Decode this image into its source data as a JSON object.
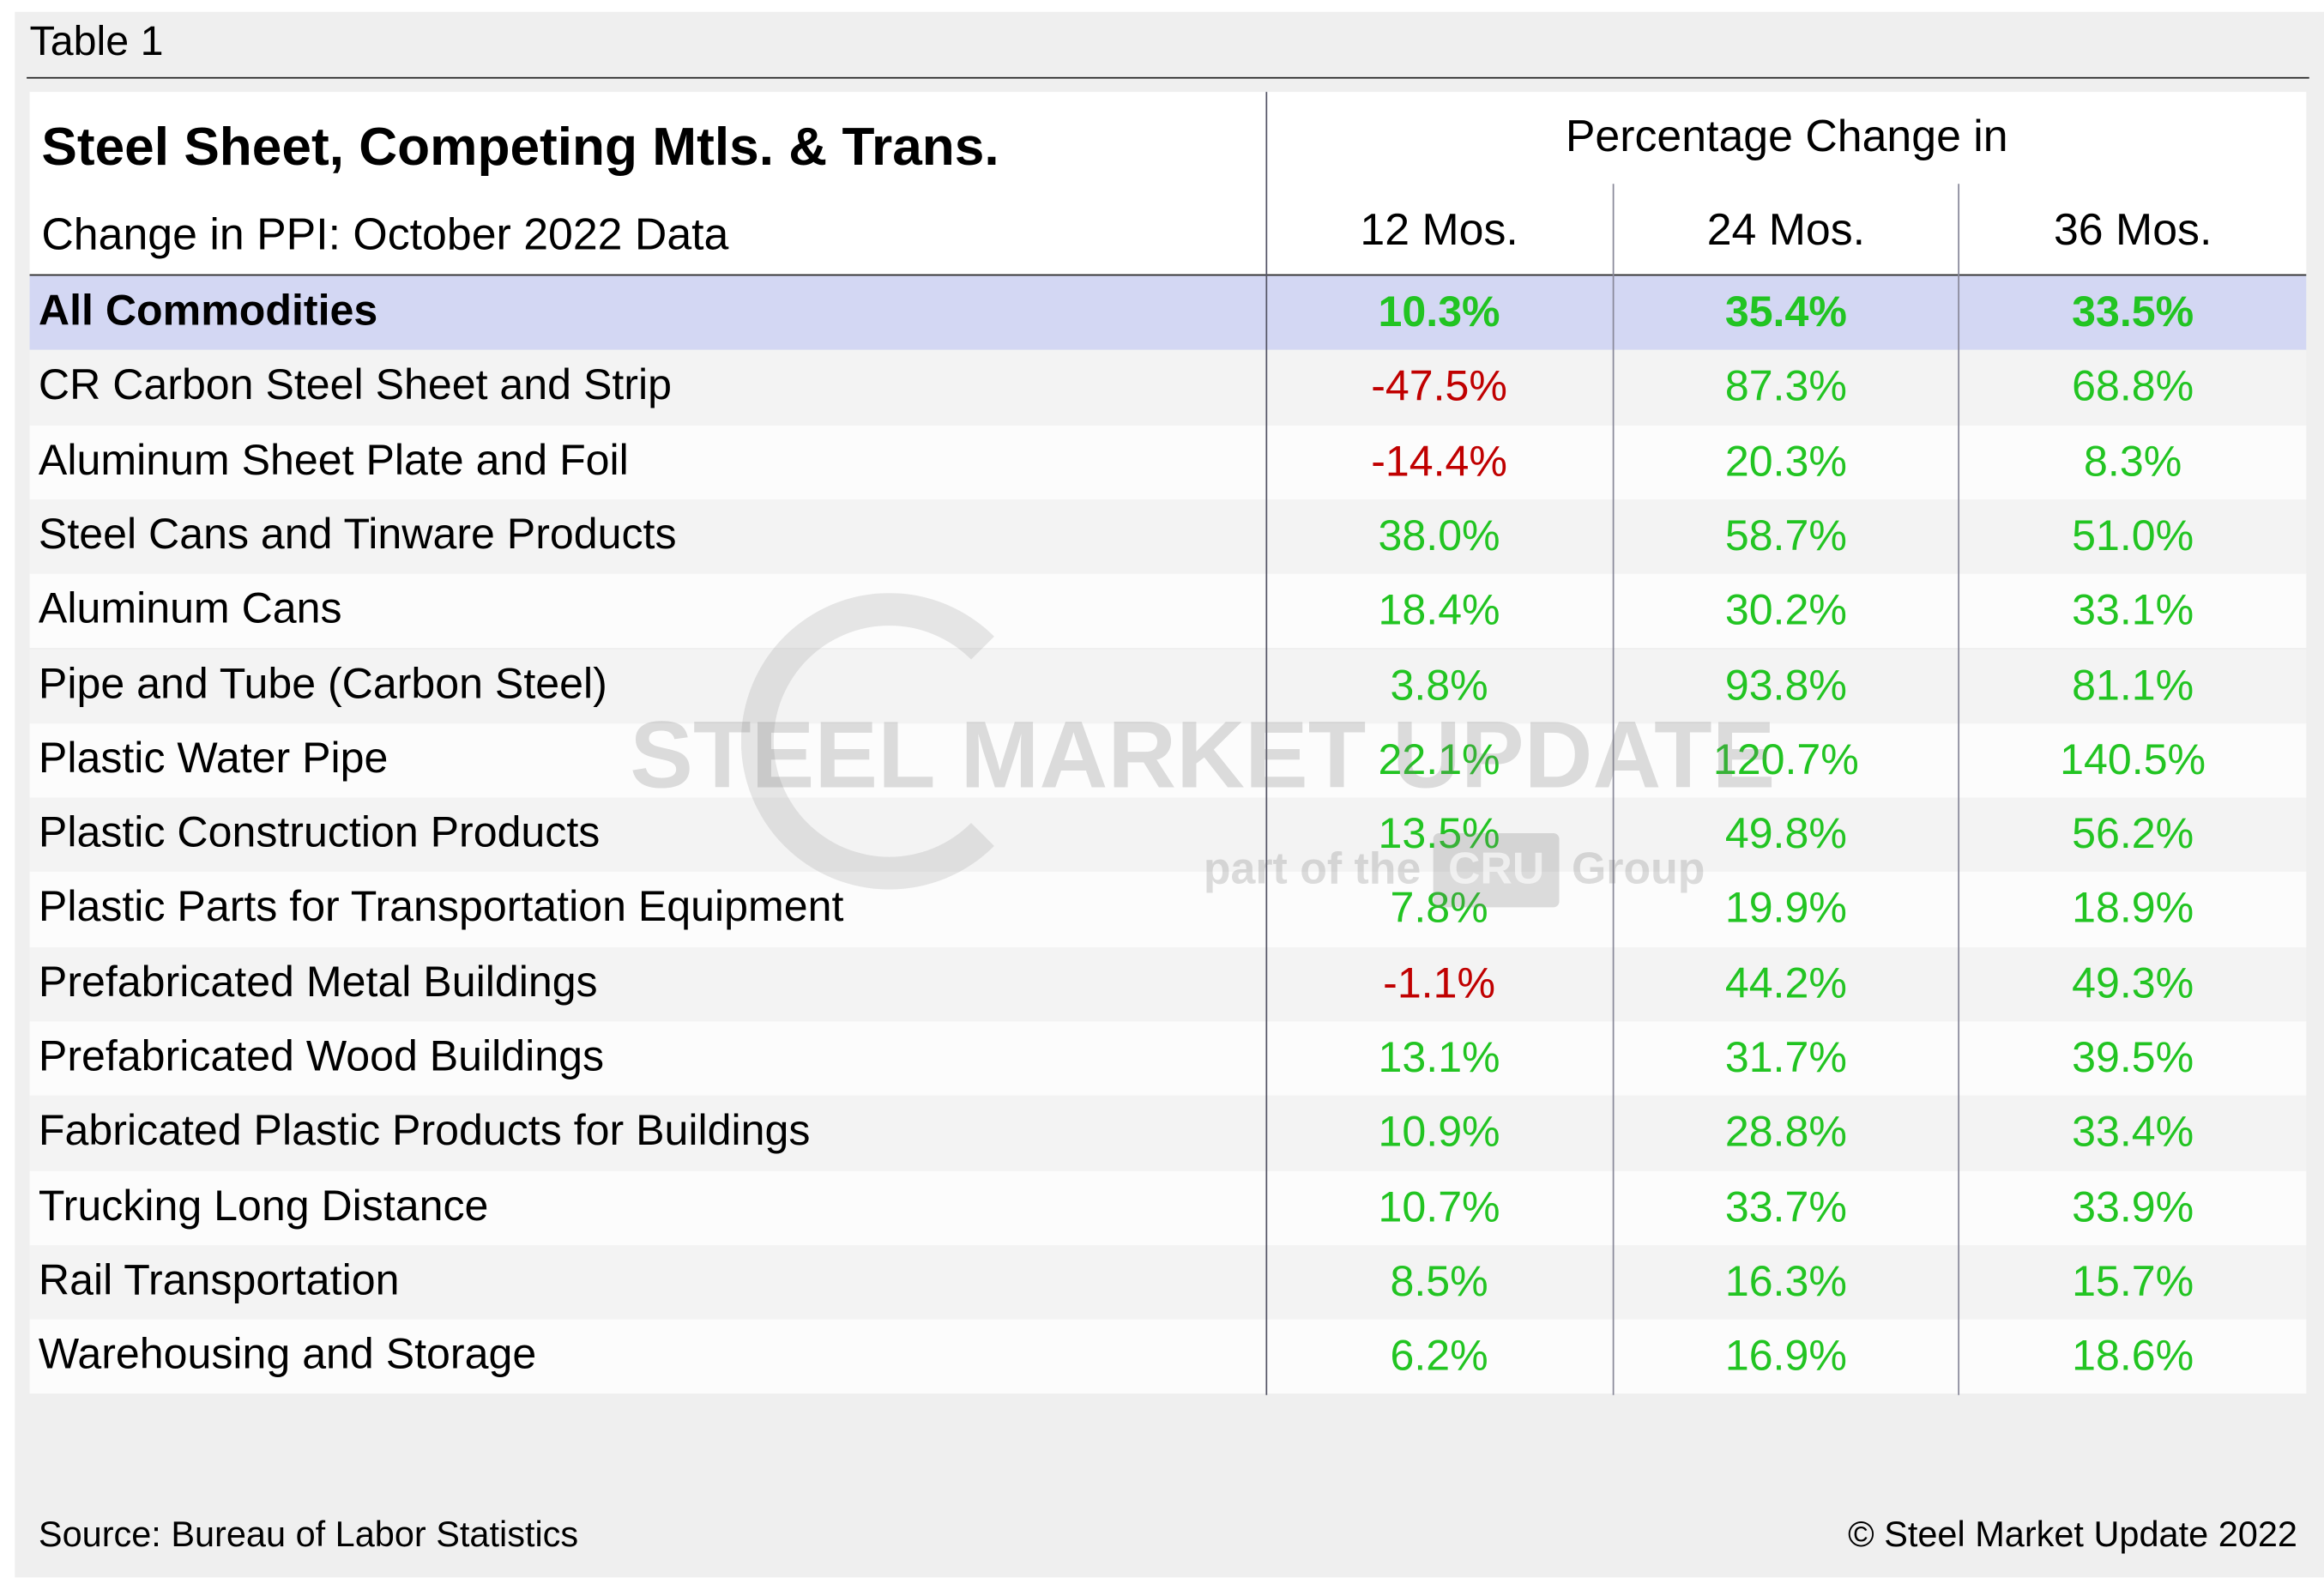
{
  "label": "Table 1",
  "header": {
    "title": "Steel Sheet, Competing Mtls. & Trans.",
    "subtitle": "Change in PPI: October 2022 Data",
    "group": "Percentage Change in",
    "columns": [
      "12 Mos.",
      "24 Mos.",
      "36 Mos."
    ]
  },
  "table": {
    "rows": [
      [
        "All Commodities",
        "10.3%",
        "35.4%",
        "33.5%"
      ],
      [
        "CR Carbon Steel Sheet and Strip",
        "-47.5%",
        "87.3%",
        "68.8%"
      ],
      [
        "Aluminum Sheet Plate and Foil",
        "-14.4%",
        "20.3%",
        "8.3%"
      ],
      [
        "Steel Cans and Tinware Products",
        "38.0%",
        "58.7%",
        "51.0%"
      ],
      [
        "Aluminum Cans",
        "18.4%",
        "30.2%",
        "33.1%"
      ],
      [
        "Pipe and Tube (Carbon Steel)",
        "3.8%",
        "93.8%",
        "81.1%"
      ],
      [
        "Plastic Water Pipe",
        "22.1%",
        "120.7%",
        "140.5%"
      ],
      [
        "Plastic Construction Products",
        "13.5%",
        "49.8%",
        "56.2%"
      ],
      [
        "Plastic Parts for Transportation Equipment",
        "7.8%",
        "19.9%",
        "18.9%"
      ],
      [
        "Prefabricated Metal Buildings",
        "-1.1%",
        "44.2%",
        "49.3%"
      ],
      [
        "Prefabricated Wood Buildings",
        "13.1%",
        "31.7%",
        "39.5%"
      ],
      [
        "Fabricated Plastic Products for Buildings",
        "10.9%",
        "28.8%",
        "33.4%"
      ],
      [
        "Trucking Long Distance",
        "10.7%",
        "33.7%",
        "33.9%"
      ],
      [
        "Rail Transportation",
        "8.5%",
        "16.3%",
        "15.7%"
      ],
      [
        "Warehousing and Storage",
        "6.2%",
        "16.9%",
        "18.6%"
      ]
    ]
  },
  "watermark": {
    "name": "STEEL MARKET UPDATE",
    "tagline_before": "part of the",
    "logo": "CRU",
    "tagline_after": "Group"
  },
  "footer": {
    "source": "Source: Bureau of Labor Statistics",
    "copyright": "© Steel Market Update 2022"
  }
}
